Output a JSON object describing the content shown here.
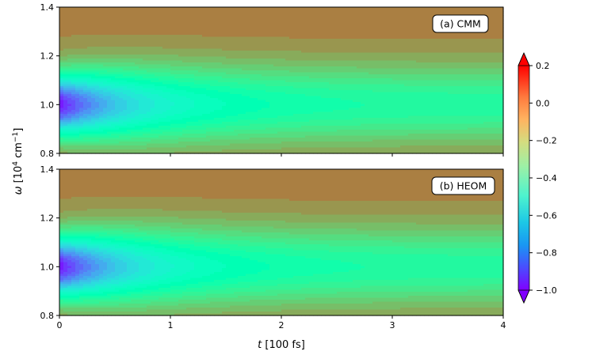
{
  "chart_data": {
    "type": "heatmap",
    "shared": {
      "x": {
        "label_symbol": "t",
        "label_unit": " [100 fs]",
        "range": [
          0,
          4
        ],
        "ticks": [
          0,
          1,
          2,
          3,
          4
        ],
        "tick_labels": [
          "0",
          "1",
          "2",
          "3",
          "4"
        ]
      },
      "y": {
        "label_symbol": "ω",
        "label_unit_pre": " [10",
        "label_unit_sup1": "4",
        "label_unit_mid": " cm",
        "label_unit_sup2": "−1",
        "label_unit_post": "]",
        "range": [
          0.8,
          1.4
        ],
        "ticks": [
          0.8,
          1.0,
          1.2,
          1.4
        ],
        "tick_labels": [
          "0.8",
          "1.0",
          "1.2",
          "1.4"
        ]
      },
      "colorbar": {
        "range": [
          -1.0,
          0.2
        ],
        "ticks": [
          0.2,
          0.0,
          -0.2,
          -0.4,
          -0.6,
          -0.8,
          -1.0
        ],
        "tick_labels": [
          "0.2",
          "0.0",
          "−0.2",
          "−0.4",
          "−0.6",
          "−0.8",
          "−1.0"
        ],
        "colormap": "rainbow",
        "extend": "both",
        "levels": 30
      },
      "field": {
        "center_omega": 1.0,
        "peak_min_at_t0": -0.95,
        "asymptotic_center": -0.3,
        "upper_band_plateau": 0.03,
        "decay_time": 0.8
      }
    },
    "panels": [
      {
        "id": "a",
        "label": "(a) CMM"
      },
      {
        "id": "b",
        "label": "(b) HEOM"
      }
    ]
  }
}
